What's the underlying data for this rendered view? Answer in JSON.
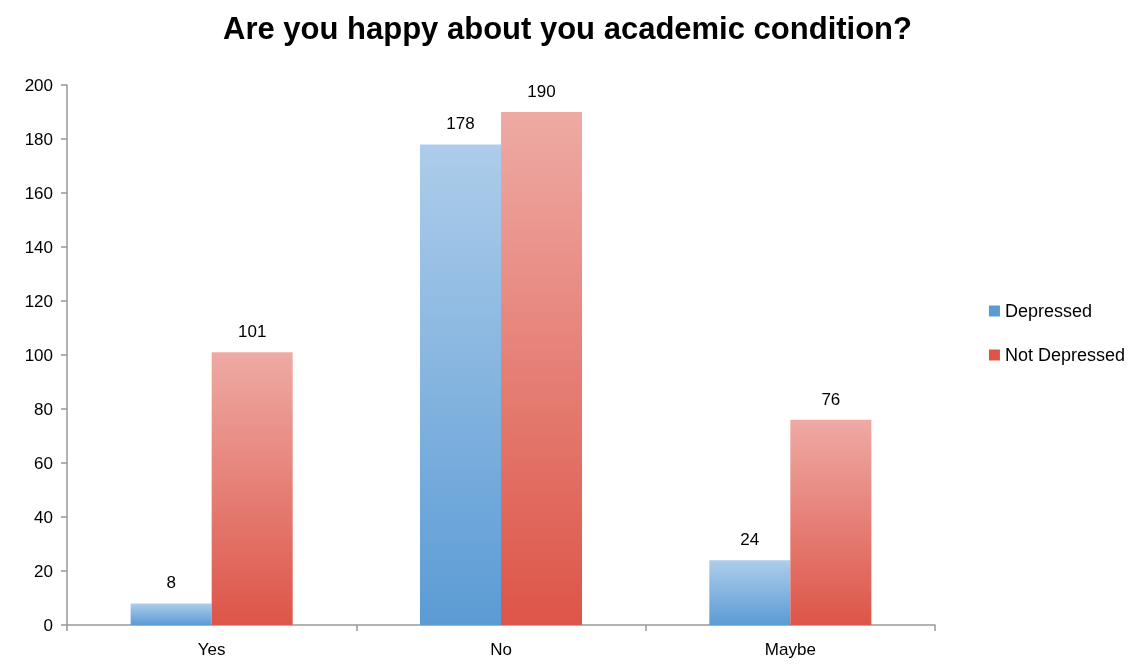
{
  "chart_data": {
    "type": "bar",
    "title": "Are you happy about you academic condition?",
    "categories": [
      "Yes",
      "No",
      "Maybe"
    ],
    "series": [
      {
        "name": "Depressed",
        "color": "#5b9bd5",
        "values": [
          8,
          178,
          24
        ]
      },
      {
        "name": "Not Depressed",
        "color": "#dd5548",
        "values": [
          101,
          190,
          76
        ]
      }
    ],
    "ylim": [
      0,
      200
    ],
    "yticks": [
      0,
      20,
      40,
      60,
      80,
      100,
      120,
      140,
      160,
      180,
      200
    ],
    "grid": false,
    "legend": "right",
    "data_labels": true
  }
}
